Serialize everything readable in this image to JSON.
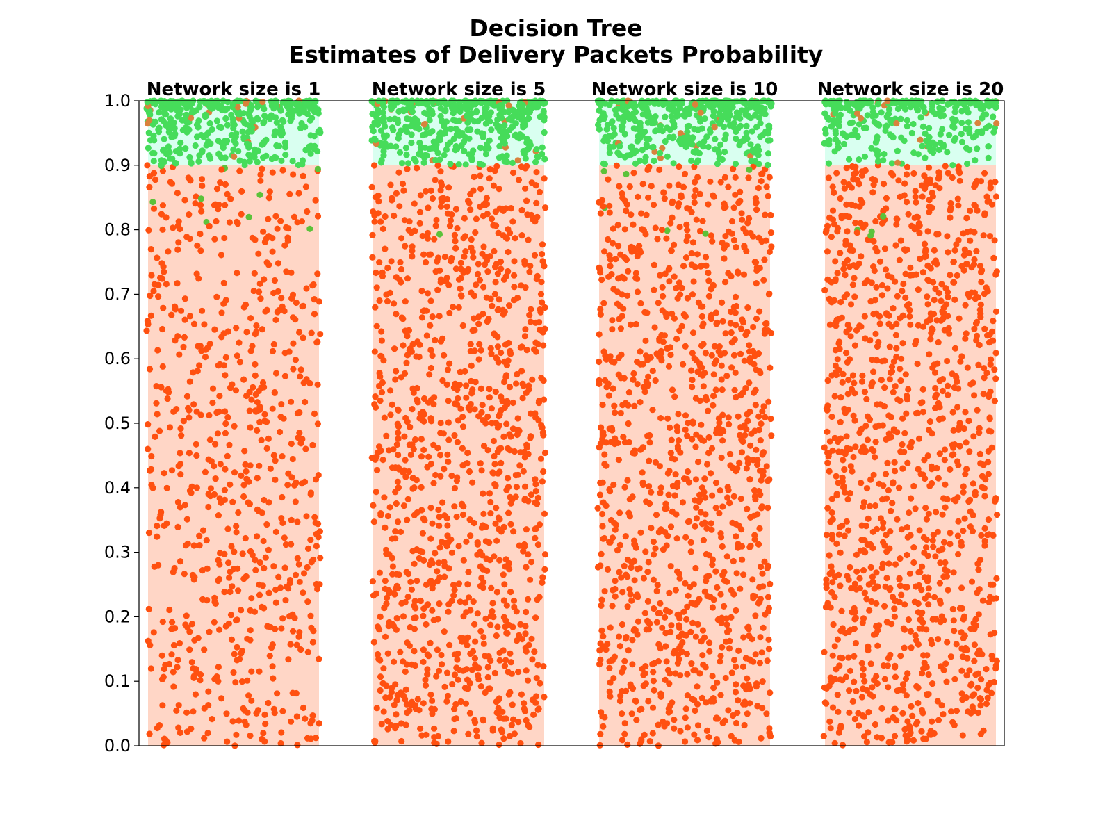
{
  "chart_data": {
    "type": "scatter",
    "title": "Decision Tree",
    "subtitle": "Estimates of Delivery Packets Probability",
    "xlabel": "",
    "ylabel": "",
    "ylim": [
      0,
      1
    ],
    "yticks": [
      "0.0",
      "0.1",
      "0.2",
      "0.3",
      "0.4",
      "0.5",
      "0.6",
      "0.7",
      "0.8",
      "0.9",
      "1.0"
    ],
    "threshold": 0.9,
    "grid": false,
    "legend": "none",
    "colors": {
      "below_band": "#ffd6c6",
      "above_band": "#d9fff0",
      "below_points": "#ff5010",
      "above_points": "#46dc5a"
    },
    "groups": [
      {
        "label": "Network size is 1",
        "network_size": 1,
        "points_below_0_9": 700,
        "points_above_0_9": 430
      },
      {
        "label": "Network size is 5",
        "network_size": 5,
        "points_below_0_9": 1080,
        "points_above_0_9": 420
      },
      {
        "label": "Network size is 10",
        "network_size": 10,
        "points_below_0_9": 1080,
        "points_above_0_9": 430
      },
      {
        "label": "Network size is 20",
        "network_size": 20,
        "points_below_0_9": 1150,
        "points_above_0_9": 300
      }
    ]
  }
}
